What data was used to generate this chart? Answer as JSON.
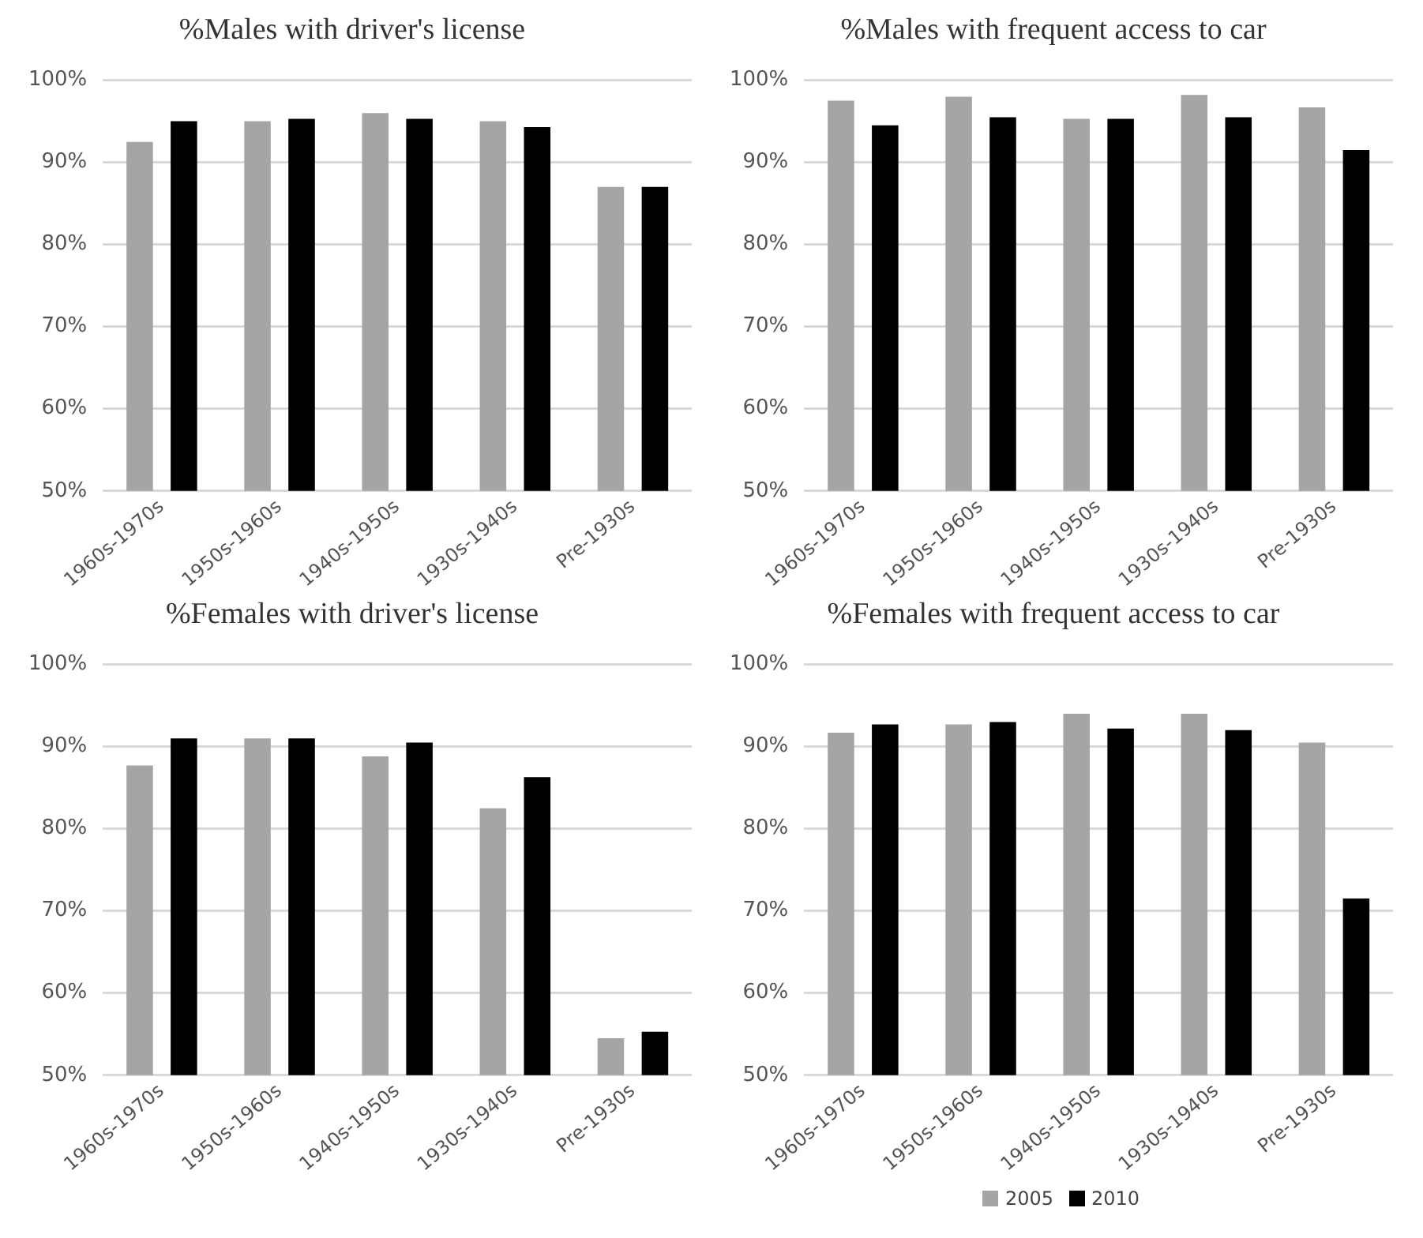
{
  "chart_data": [
    {
      "type": "bar",
      "title": "%Males with driver's license",
      "categories": [
        "1960s-1970s",
        "1950s-1960s",
        "1940s-1950s",
        "1930s-1940s",
        "Pre-1930s"
      ],
      "series": [
        {
          "color": "#a5a5a5",
          "values": [
            92.5,
            95,
            96,
            95,
            87
          ]
        },
        {
          "color": "#000000",
          "values": [
            95,
            95.3,
            95.3,
            94.3,
            87
          ]
        }
      ],
      "ylim": [
        50,
        100
      ],
      "yticks": [
        {
          "value": 50,
          "label": "50%"
        },
        {
          "value": 60,
          "label": "60%"
        },
        {
          "value": 70,
          "label": "70%"
        },
        {
          "value": 80,
          "label": "80%"
        },
        {
          "value": 90,
          "label": "90%"
        },
        {
          "value": 100,
          "label": "100%"
        }
      ],
      "grid": "y",
      "legend": false
    },
    {
      "type": "bar",
      "title": "%Males with frequent access to car",
      "categories": [
        "1960s-1970s",
        "1950s-1960s",
        "1940s-1950s",
        "1930s-1940s",
        "Pre-1930s"
      ],
      "series": [
        {
          "color": "#a5a5a5",
          "values": [
            97.5,
            98,
            95.3,
            98.2,
            96.7
          ]
        },
        {
          "color": "#000000",
          "values": [
            94.5,
            95.5,
            95.3,
            95.5,
            91.5
          ]
        }
      ],
      "ylim": [
        50,
        100
      ],
      "yticks": [
        {
          "value": 50,
          "label": "50%"
        },
        {
          "value": 60,
          "label": "60%"
        },
        {
          "value": 70,
          "label": "70%"
        },
        {
          "value": 80,
          "label": "80%"
        },
        {
          "value": 90,
          "label": "90%"
        },
        {
          "value": 100,
          "label": "100%"
        }
      ],
      "grid": "y",
      "legend": false
    },
    {
      "type": "bar",
      "title": "%Females with driver's license",
      "categories": [
        "1960s-1970s",
        "1950s-1960s",
        "1940s-1950s",
        "1930s-1940s",
        "Pre-1930s"
      ],
      "series": [
        {
          "color": "#a5a5a5",
          "values": [
            87.7,
            91,
            88.8,
            82.5,
            54.5
          ]
        },
        {
          "color": "#000000",
          "values": [
            91,
            91,
            90.5,
            86.3,
            55.3
          ]
        }
      ],
      "ylim": [
        50,
        100
      ],
      "yticks": [
        {
          "value": 50,
          "label": "50%"
        },
        {
          "value": 60,
          "label": "60%"
        },
        {
          "value": 70,
          "label": "70%"
        },
        {
          "value": 80,
          "label": "80%"
        },
        {
          "value": 90,
          "label": "90%"
        },
        {
          "value": 100,
          "label": "100%"
        }
      ],
      "grid": "y",
      "legend": false
    },
    {
      "type": "bar",
      "title": "%Females with frequent access to car",
      "categories": [
        "1960s-1970s",
        "1950s-1960s",
        "1940s-1950s",
        "1930s-1940s",
        "Pre-1930s"
      ],
      "series": [
        {
          "name": "2005",
          "color": "#a5a5a5",
          "values": [
            91.7,
            92.7,
            94,
            94,
            90.5
          ]
        },
        {
          "name": "2010",
          "color": "#000000",
          "values": [
            92.7,
            93,
            92.2,
            92,
            71.5
          ]
        }
      ],
      "ylim": [
        50,
        100
      ],
      "yticks": [
        {
          "value": 50,
          "label": "50%"
        },
        {
          "value": 60,
          "label": "60%"
        },
        {
          "value": 70,
          "label": "70%"
        },
        {
          "value": 80,
          "label": "80%"
        },
        {
          "value": 90,
          "label": "90%"
        },
        {
          "value": 100,
          "label": "100%"
        }
      ],
      "grid": "y",
      "legend": "bottom"
    }
  ]
}
